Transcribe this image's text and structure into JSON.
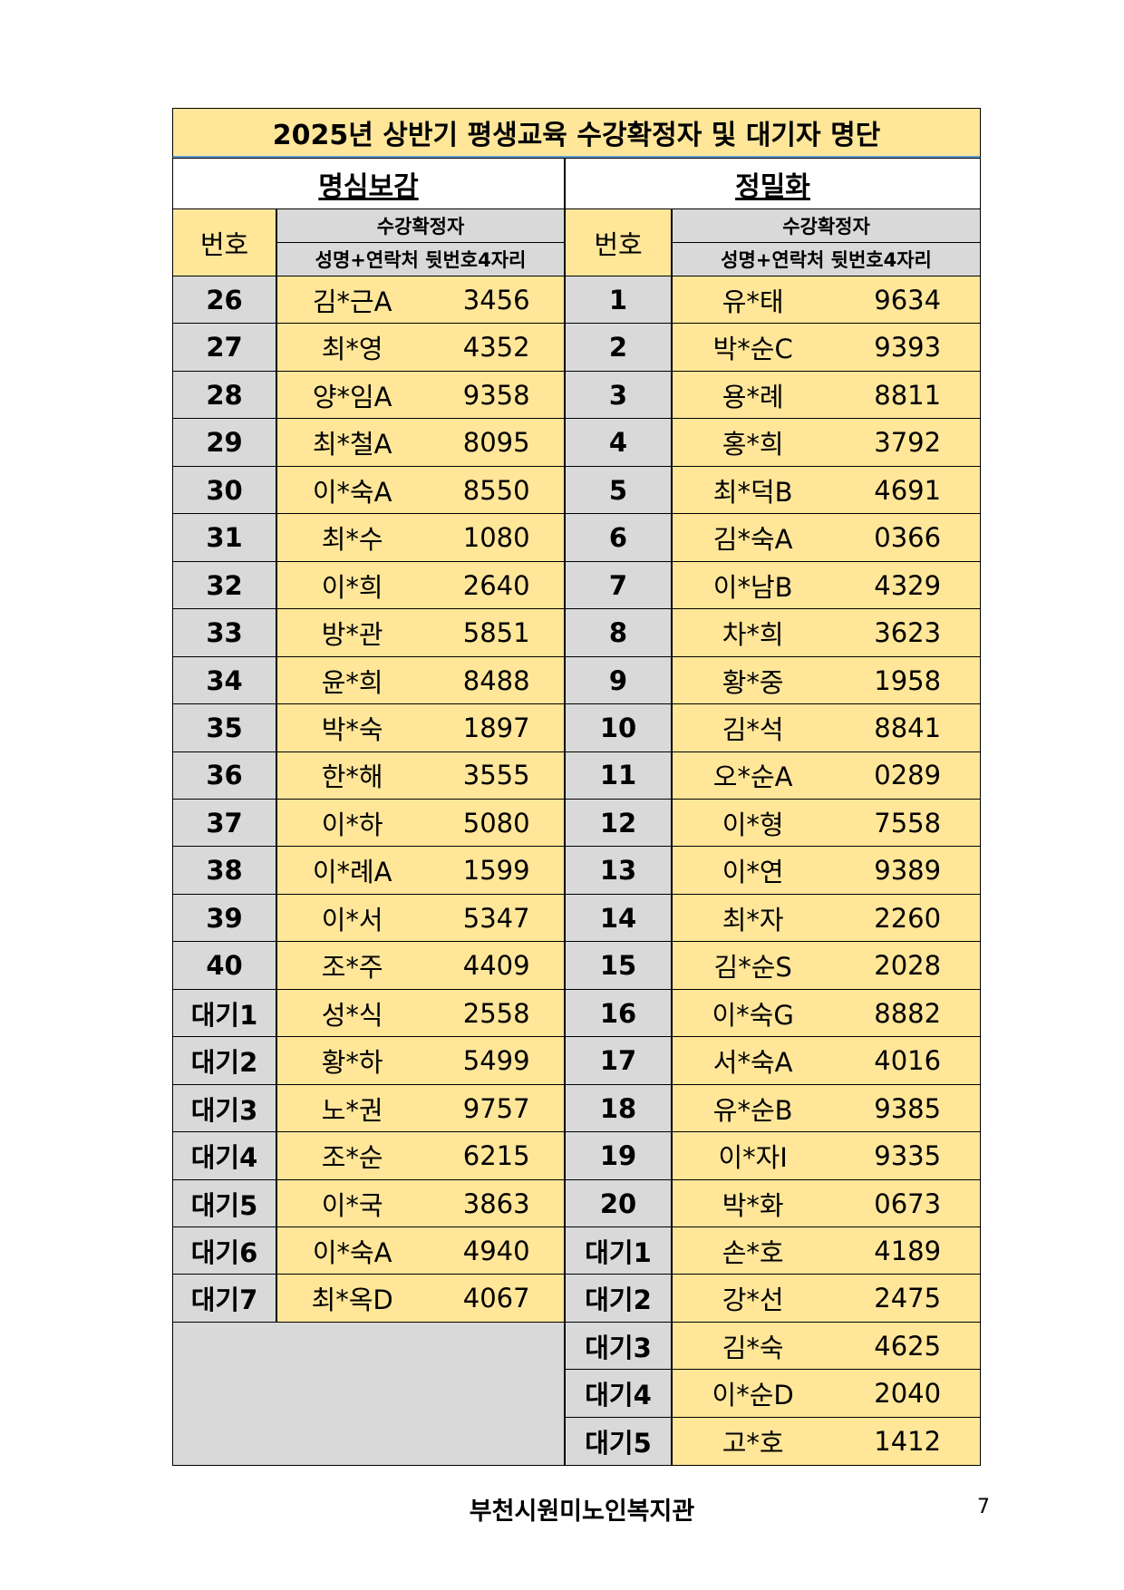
{
  "title": "2025년 상반기 평생교육 수강확정자 및 대기자 명단",
  "sections": [
    {
      "name": "명심보감",
      "header_no": "번호",
      "header_group": "수강확정자",
      "header_sub": "성명+연락처 뒷번호4자리",
      "rows": [
        [
          "26",
          "김*근A",
          "3456"
        ],
        [
          "27",
          "최*영",
          "4352"
        ],
        [
          "28",
          "양*임A",
          "9358"
        ],
        [
          "29",
          "최*철A",
          "8095"
        ],
        [
          "30",
          "이*숙A",
          "8550"
        ],
        [
          "31",
          "최*수",
          "1080"
        ],
        [
          "32",
          "이*희",
          "2640"
        ],
        [
          "33",
          "방*관",
          "5851"
        ],
        [
          "34",
          "윤*희",
          "8488"
        ],
        [
          "35",
          "박*숙",
          "1897"
        ],
        [
          "36",
          "한*해",
          "3555"
        ],
        [
          "37",
          "이*하",
          "5080"
        ],
        [
          "38",
          "이*례A",
          "1599"
        ],
        [
          "39",
          "이*서",
          "5347"
        ],
        [
          "40",
          "조*주",
          "4409"
        ],
        [
          "대기1",
          "성*식",
          "2558"
        ],
        [
          "대기2",
          "황*하",
          "5499"
        ],
        [
          "대기3",
          "노*권",
          "9757"
        ],
        [
          "대기4",
          "조*순",
          "6215"
        ],
        [
          "대기5",
          "이*국",
          "3863"
        ],
        [
          "대기6",
          "이*숙A",
          "4940"
        ],
        [
          "대기7",
          "최*옥D",
          "4067"
        ]
      ]
    },
    {
      "name": "정밀화",
      "header_no": "번호",
      "header_group": "수강확정자",
      "header_sub": "성명+연락처 뒷번호4자리",
      "rows": [
        [
          "1",
          "유*태",
          "9634"
        ],
        [
          "2",
          "박*순C",
          "9393"
        ],
        [
          "3",
          "용*례",
          "8811"
        ],
        [
          "4",
          "홍*희",
          "3792"
        ],
        [
          "5",
          "최*덕B",
          "4691"
        ],
        [
          "6",
          "김*숙A",
          "0366"
        ],
        [
          "7",
          "이*남B",
          "4329"
        ],
        [
          "8",
          "차*희",
          "3623"
        ],
        [
          "9",
          "황*중",
          "1958"
        ],
        [
          "10",
          "김*석",
          "8841"
        ],
        [
          "11",
          "오*순A",
          "0289"
        ],
        [
          "12",
          "이*형",
          "7558"
        ],
        [
          "13",
          "이*연",
          "9389"
        ],
        [
          "14",
          "최*자",
          "2260"
        ],
        [
          "15",
          "김*순S",
          "2028"
        ],
        [
          "16",
          "이*숙G",
          "8882"
        ],
        [
          "17",
          "서*숙A",
          "4016"
        ],
        [
          "18",
          "유*순B",
          "9385"
        ],
        [
          "19",
          "이*자I",
          "9335"
        ],
        [
          "20",
          "박*화",
          "0673"
        ],
        [
          "대기1",
          "손*호",
          "4189"
        ],
        [
          "대기2",
          "강*선",
          "2475"
        ],
        [
          "대기3",
          "김*숙",
          "4625"
        ],
        [
          "대기4",
          "이*순D",
          "2040"
        ],
        [
          "대기5",
          "고*호",
          "1412"
        ]
      ]
    }
  ],
  "footer": "부천시원미노인복지관",
  "page_number": "7"
}
